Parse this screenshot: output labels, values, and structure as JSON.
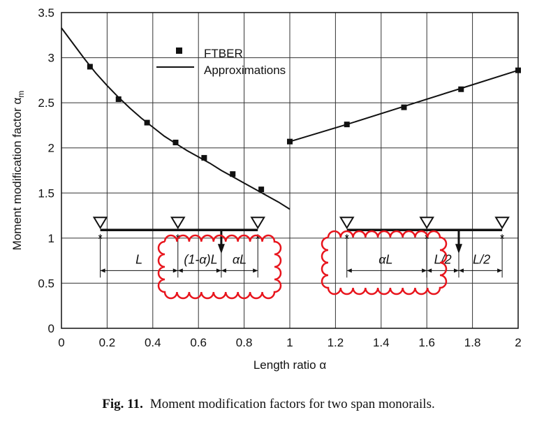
{
  "chart_data": {
    "type": "line",
    "xlabel": "Length ratio α",
    "ylabel": "Moment modification factor α",
    "ylabel_subscript": "m",
    "xlim": [
      0,
      2
    ],
    "ylim": [
      0,
      3.5
    ],
    "x_ticks": [
      "0",
      "0.2",
      "0.4",
      "0.6",
      "0.8",
      "1",
      "1.2",
      "1.4",
      "1.6",
      "1.8",
      "2"
    ],
    "y_ticks": [
      "0",
      "0.5",
      "1",
      "1.5",
      "2",
      "2.5",
      "3",
      "3.5"
    ],
    "x_tick_values": [
      0,
      0.2,
      0.4,
      0.6,
      0.8,
      1,
      1.2,
      1.4,
      1.6,
      1.8,
      2
    ],
    "y_tick_values": [
      0,
      0.5,
      1,
      1.5,
      2,
      2.5,
      3,
      3.5
    ],
    "grid": true,
    "legend_position": "top-center",
    "series": [
      {
        "name": "FTBER",
        "kind": "marker",
        "x": [
          0.125,
          0.25,
          0.375,
          0.5,
          0.625,
          0.75,
          0.875,
          1.0,
          1.25,
          1.5,
          1.75,
          2.0
        ],
        "y": [
          2.9,
          2.54,
          2.28,
          2.06,
          1.89,
          1.71,
          1.54,
          2.07,
          2.26,
          2.45,
          2.65,
          2.86
        ]
      },
      {
        "name": "Approximations",
        "kind": "line",
        "segments": [
          {
            "x": [
              0,
              0.05,
              0.1,
              0.15,
              0.2,
              0.25,
              0.3,
              0.35,
              0.4,
              0.45,
              0.5,
              0.55,
              0.6,
              0.65,
              0.7,
              0.75,
              0.8,
              0.85,
              0.9,
              0.95,
              1.0
            ],
            "y": [
              3.33,
              3.16,
              2.99,
              2.83,
              2.69,
              2.56,
              2.44,
              2.33,
              2.23,
              2.13,
              2.05,
              1.97,
              1.9,
              1.83,
              1.75,
              1.68,
              1.61,
              1.54,
              1.47,
              1.4,
              1.32
            ]
          },
          {
            "x": [
              1.0,
              1.25,
              1.5,
              1.75,
              2.0
            ],
            "y": [
              2.07,
              2.26,
              2.46,
              2.66,
              2.86
            ]
          }
        ]
      }
    ],
    "annotations": {
      "left_span": {
        "beam_x": [
          0.17,
          0.86
        ],
        "beam_y": 1.09,
        "support_x": [
          0.17,
          0.51,
          0.86
        ],
        "load_x": 0.7,
        "dim_y": 0.64,
        "dim_ticks_x": [
          0.17,
          0.51,
          0.7,
          0.86
        ],
        "labels": [
          {
            "text": "L",
            "x": 0.34
          },
          {
            "text": "(1-α)L",
            "x": 0.61
          },
          {
            "text": "αL",
            "x": 0.78
          }
        ]
      },
      "right_span": {
        "beam_x": [
          1.25,
          1.93
        ],
        "beam_y": 1.09,
        "support_x": [
          1.25,
          1.6,
          1.93
        ],
        "load_x": 1.74,
        "dim_y": 0.64,
        "dim_ticks_x": [
          1.25,
          1.6,
          1.74,
          1.93
        ],
        "labels": [
          {
            "text": "αL",
            "x": 1.42
          },
          {
            "text": "L/2",
            "x": 1.67
          },
          {
            "text": "L/2",
            "x": 1.84
          }
        ]
      }
    }
  },
  "caption": {
    "label": "Fig. 11.",
    "text": "Moment modification factors for two span monorails."
  },
  "colors": {
    "ink": "#111111",
    "grid": "#333333",
    "highlight": "#e8141c"
  }
}
